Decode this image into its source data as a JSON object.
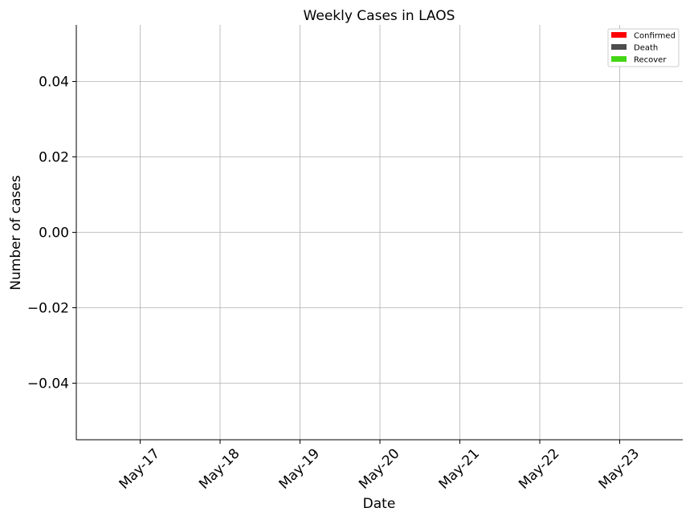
{
  "chart_data": {
    "type": "bar",
    "title": "Weekly Cases in LAOS",
    "xlabel": "Date",
    "ylabel": "Number of cases",
    "categories": [
      "May-17",
      "May-18",
      "May-19",
      "May-20",
      "May-21",
      "May-22",
      "May-23"
    ],
    "yticks": [
      -0.04,
      -0.02,
      0.0,
      0.02,
      0.04
    ],
    "ytick_labels": [
      "−0.04",
      "−0.02",
      "0.00",
      "0.02",
      "0.04"
    ],
    "ylim": [
      -0.055,
      0.055
    ],
    "grid": true,
    "legend_position": "top-right",
    "series": [
      {
        "name": "Confirmed",
        "color": "#ff0000",
        "values": [
          0,
          0,
          0,
          0,
          0,
          0,
          0
        ]
      },
      {
        "name": "Death",
        "color": "#4d4d4d",
        "values": [
          0,
          0,
          0,
          0,
          0,
          0,
          0
        ]
      },
      {
        "name": "Recover",
        "color": "#44d615",
        "values": [
          0,
          0,
          0,
          0,
          0,
          0,
          0
        ]
      }
    ]
  }
}
